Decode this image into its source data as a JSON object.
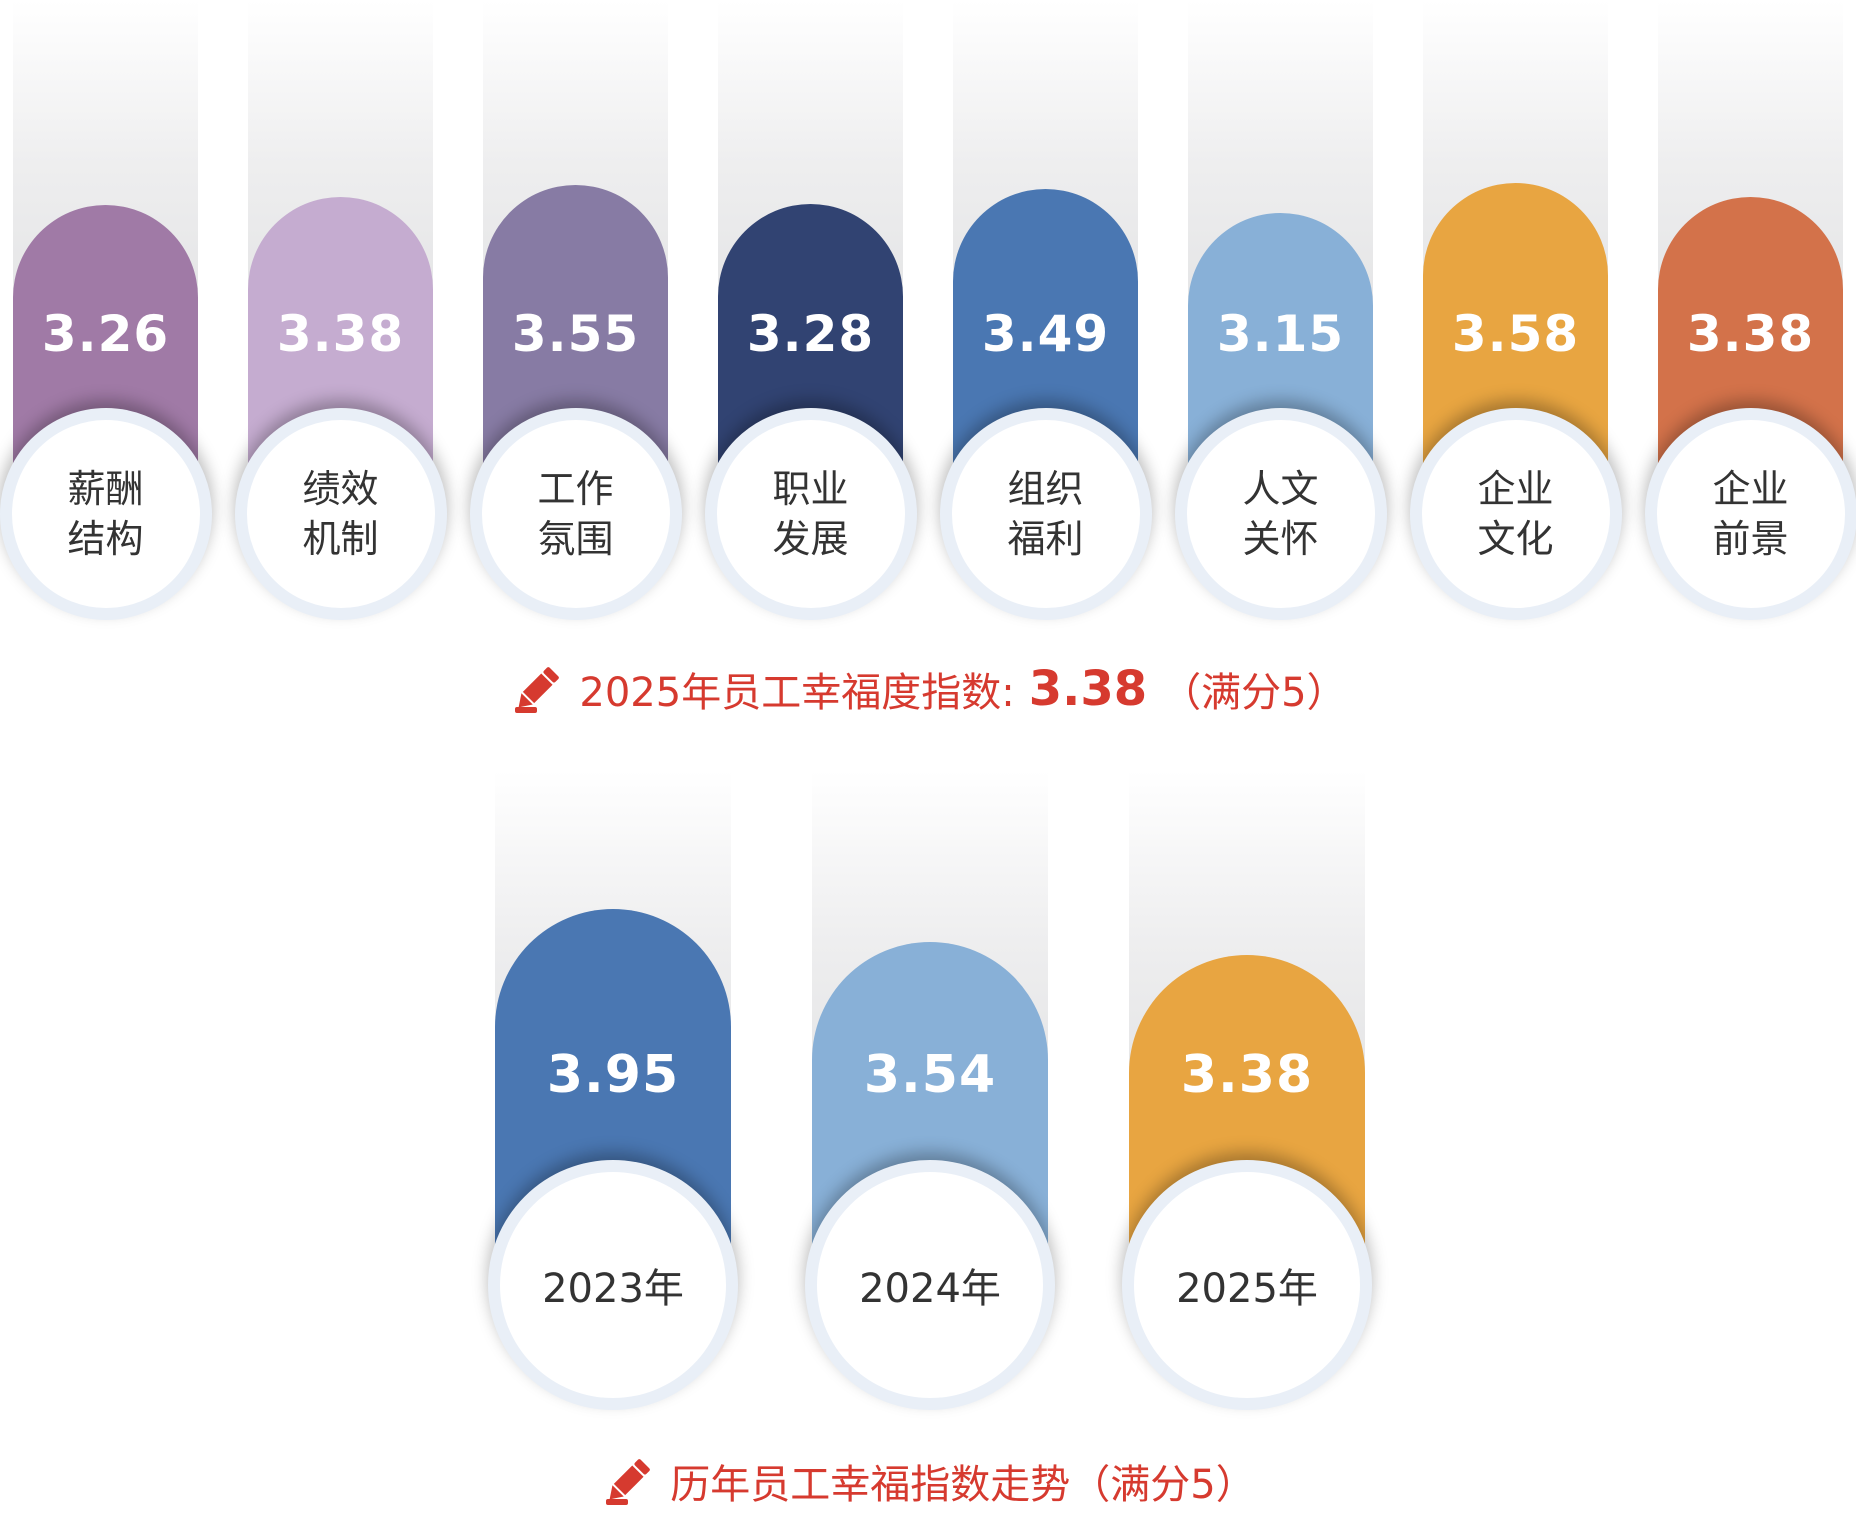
{
  "chart_data": [
    {
      "type": "bar",
      "categories": [
        "薪酬结构",
        "绩效机制",
        "工作氛围",
        "职业发展",
        "组织福利",
        "人文关怀",
        "企业文化",
        "企业前景"
      ],
      "values": [
        3.26,
        3.38,
        3.55,
        3.28,
        3.49,
        3.15,
        3.58,
        3.38
      ],
      "value_labels": [
        "3.26",
        "3.38",
        "3.55",
        "3.28",
        "3.49",
        "3.15",
        "3.58",
        "3.38"
      ],
      "colors": [
        "#a07aa6",
        "#c5acd0",
        "#877ba4",
        "#314372",
        "#4a77b2",
        "#88b0d7",
        "#e8a541",
        "#d3724a"
      ]
    },
    {
      "type": "bar",
      "categories": [
        "2023年",
        "2024年",
        "2025年"
      ],
      "values": [
        3.95,
        3.54,
        3.38
      ],
      "value_labels": [
        "3.95",
        "3.54",
        "3.38"
      ],
      "colors": [
        "#4a77b2",
        "#88b0d7",
        "#e8a541"
      ]
    }
  ],
  "captions": {
    "current": {
      "text": "2025年员工幸福度指数:",
      "value": "3.38",
      "suffix": "（满分5）"
    },
    "trend": {
      "text": "历年员工幸福指数走势（满分5）"
    }
  },
  "icons": {
    "caption_icon": "pencil-icon"
  },
  "accent_color": "#d63a2f"
}
